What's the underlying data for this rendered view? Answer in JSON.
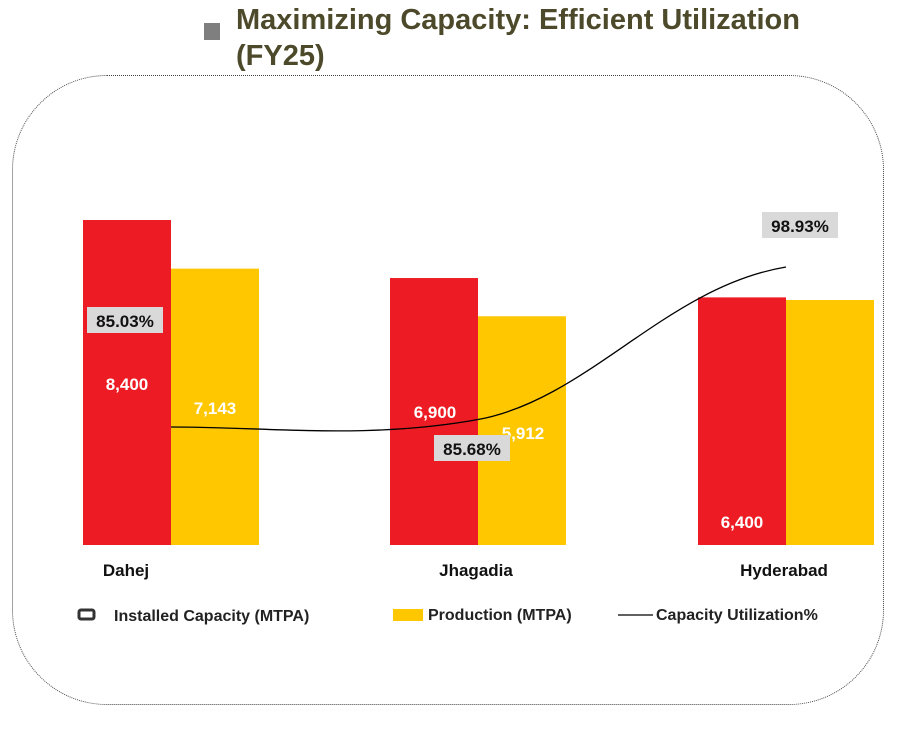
{
  "title": "Maximizing Capacity: Efficient Utilization (FY25)",
  "colors": {
    "installed": "#ed1c24",
    "production": "#ffc700",
    "utilization": "#000000",
    "title": "#4d4a2b"
  },
  "chart_data": {
    "type": "bar",
    "title": "Maximizing Capacity: Efficient Utilization (FY25)",
    "categories": [
      "Dahej",
      "Jhagadia",
      "Hyderabad"
    ],
    "series": [
      {
        "name": "Installed  Capacity (MTPA)",
        "type": "bar",
        "values": [
          8400,
          6900,
          6400
        ],
        "labels": [
          "8,400",
          "6,900",
          "6,400"
        ]
      },
      {
        "name": "Production (MTPA)",
        "type": "bar",
        "values": [
          7143,
          5912,
          6332
        ],
        "labels": [
          "7,143",
          "5,912",
          ""
        ]
      },
      {
        "name": "Capacity Utilization%",
        "type": "line",
        "axis": "secondary",
        "values": [
          85.03,
          85.68,
          98.93
        ],
        "labels": [
          "85.03%",
          "85.68%",
          "98.93%"
        ]
      }
    ],
    "legend": "bottom",
    "grid": false,
    "axes_visible": false
  }
}
